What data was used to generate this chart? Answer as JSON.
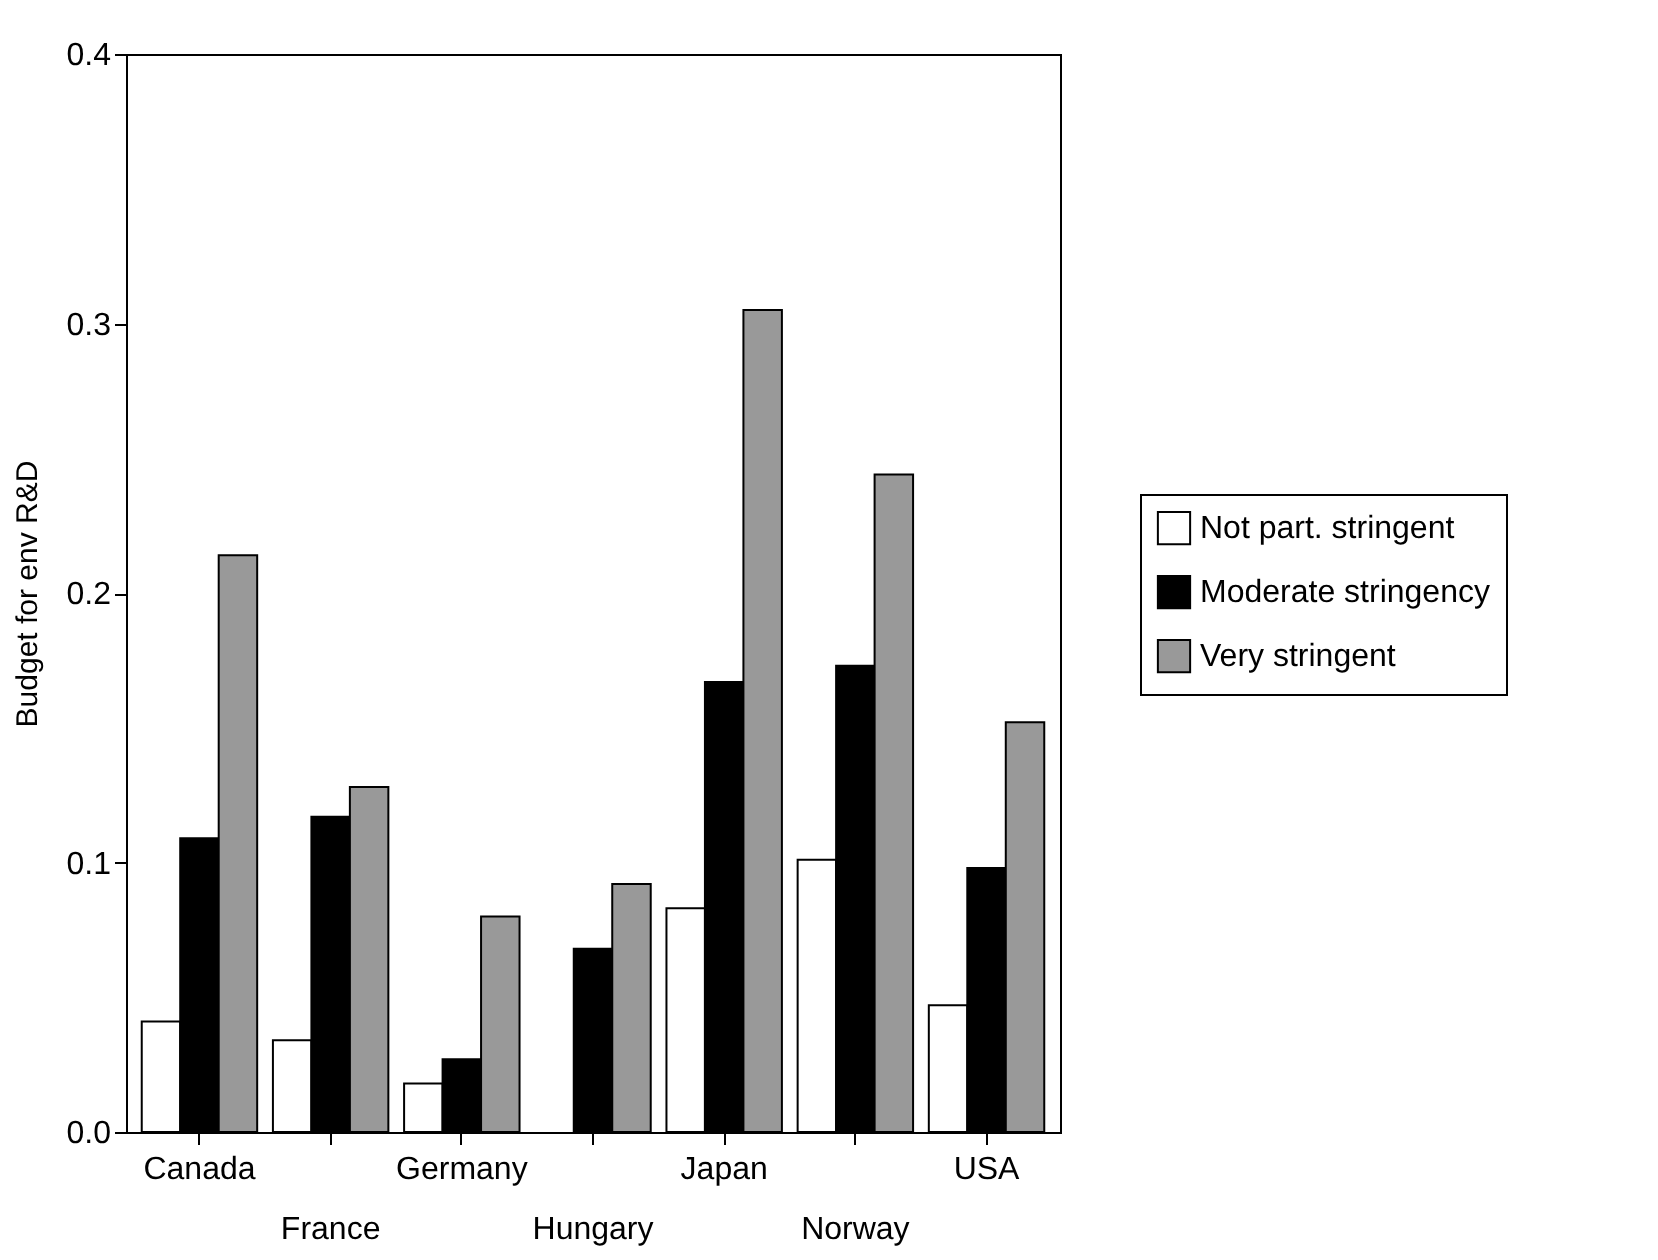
{
  "chart_data": {
    "type": "bar",
    "ylabel": "Budget for env R&D",
    "categories": [
      "Canada",
      "France",
      "Germany",
      "Hungary",
      "Japan",
      "Norway",
      "USA"
    ],
    "series": [
      {
        "name": "Not part. stringent",
        "color": "#ffffff",
        "values": [
          0.041,
          0.034,
          0.018,
          0.0,
          0.083,
          0.101,
          0.047
        ]
      },
      {
        "name": "Moderate stringency",
        "color": "#000000",
        "values": [
          0.109,
          0.117,
          0.027,
          0.068,
          0.167,
          0.173,
          0.098
        ]
      },
      {
        "name": "Very stringent",
        "color": "#999999",
        "values": [
          0.214,
          0.128,
          0.08,
          0.092,
          0.305,
          0.244,
          0.152
        ]
      }
    ],
    "ylim": [
      0,
      0.4
    ],
    "yticks": [
      {
        "value": 0,
        "label": "0.0"
      },
      0.1,
      0.2,
      0.3,
      0.4
    ],
    "grid": false,
    "legend": "right"
  }
}
